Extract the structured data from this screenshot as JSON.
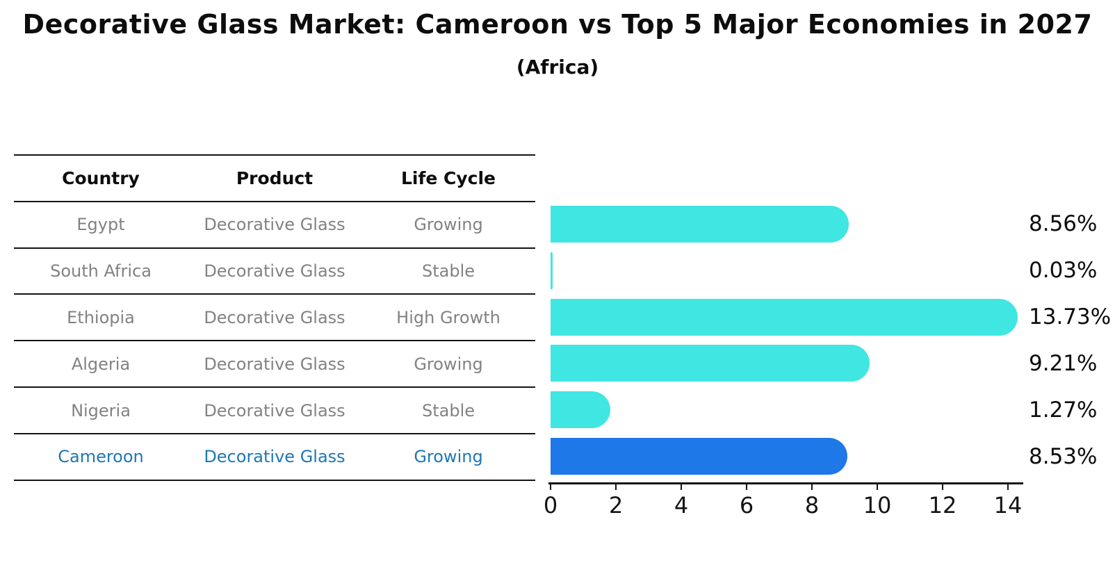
{
  "title": "Decorative Glass Market: Cameroon vs Top 5 Major Economies in 2027",
  "subtitle": "(Africa)",
  "table": {
    "headers": [
      "Country",
      "Product",
      "Life Cycle"
    ]
  },
  "chart_data": {
    "type": "bar",
    "orientation": "horizontal",
    "title": "Decorative Glass Market: Cameroon vs Top 5 Major Economies in 2027",
    "subtitle": "(Africa)",
    "categories": [
      "Egypt",
      "South Africa",
      "Ethiopia",
      "Algeria",
      "Nigeria",
      "Cameroon"
    ],
    "values": [
      8.56,
      0.03,
      13.73,
      9.21,
      1.27,
      8.53
    ],
    "rows": [
      {
        "country": "Egypt",
        "product": "Decorative Glass",
        "life_cycle": "Growing",
        "value": 8.56,
        "value_label": "8.56%",
        "highlight": false
      },
      {
        "country": "South Africa",
        "product": "Decorative Glass",
        "life_cycle": "Stable",
        "value": 0.03,
        "value_label": "0.03%",
        "highlight": false
      },
      {
        "country": "Ethiopia",
        "product": "Decorative Glass",
        "life_cycle": "High Growth",
        "value": 13.73,
        "value_label": "13.73%",
        "highlight": false
      },
      {
        "country": "Algeria",
        "product": "Decorative Glass",
        "life_cycle": "Growing",
        "value": 9.21,
        "value_label": "9.21%",
        "highlight": false
      },
      {
        "country": "Nigeria",
        "product": "Decorative Glass",
        "life_cycle": "Stable",
        "value": 1.27,
        "value_label": "1.27%",
        "highlight": false
      },
      {
        "country": "Cameroon",
        "product": "Decorative Glass",
        "life_cycle": "Growing",
        "value": 8.53,
        "value_label": "8.53%",
        "highlight": true
      }
    ],
    "xlim": [
      0,
      14
    ],
    "xticks": [
      "0",
      "2",
      "4",
      "6",
      "8",
      "10",
      "12",
      "14"
    ],
    "legend": "none",
    "grid": "off",
    "colors": {
      "bar": "#40e6e1",
      "highlight_bar": "#1e78e8",
      "highlight_text": "#1f77b4",
      "row_text": "#828282",
      "header_text": "#0d0d0d",
      "axis": "#141414"
    }
  }
}
